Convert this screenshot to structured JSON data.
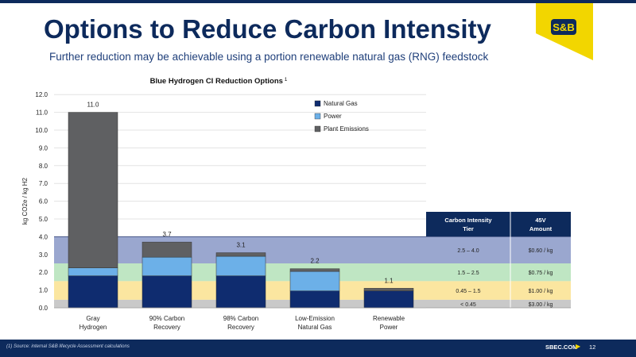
{
  "slide": {
    "title": "Options to Reduce Carbon Intensity",
    "subtitle": "Further reduction may be achievable using a portion renewable natural gas (RNG) feedstock",
    "logo_text": "S&B",
    "footnote": "(1) Source: internal S&B lifecycle Assessment calculations",
    "footer_url": "SBEC.COM",
    "page_number": "12"
  },
  "colors": {
    "brand_navy": "#0d2a5c",
    "logo_yellow": "#f2d600",
    "natural_gas": "#0f2c6f",
    "power": "#6cb0e8",
    "plant_emissions": "#5f6062",
    "tier_1": "#9aa7cf",
    "tier_2": "#bfe6c3",
    "tier_3": "#fbe6a0",
    "tier_4": "#c9c9c9"
  },
  "chart_data": {
    "type": "bar",
    "stacked": true,
    "title": "Blue Hydrogen CI Reduction Options",
    "title_superscript": "1",
    "ylabel": "kg CO2e / kg H2",
    "ylim": [
      0,
      12
    ],
    "yticks": [
      "0.0",
      "1.0",
      "2.0",
      "3.0",
      "4.0",
      "5.0",
      "6.0",
      "7.0",
      "8.0",
      "9.0",
      "10.0",
      "11.0",
      "12.0"
    ],
    "grid": true,
    "legend_position": "top-right",
    "categories": [
      [
        "Gray",
        "Hydrogen"
      ],
      [
        "90% Carbon",
        "Recovery"
      ],
      [
        "98% Carbon",
        "Recovery"
      ],
      [
        "Low-Emission",
        "Natural Gas"
      ],
      [
        "Renewable",
        "Power"
      ]
    ],
    "series": [
      {
        "name": "Natural Gas",
        "values": [
          1.8,
          1.8,
          1.8,
          0.95,
          0.95
        ]
      },
      {
        "name": "Power",
        "values": [
          0.45,
          1.05,
          1.1,
          1.1,
          0.0
        ]
      },
      {
        "name": "Plant Emissions",
        "values": [
          8.75,
          0.85,
          0.2,
          0.15,
          0.15
        ]
      }
    ],
    "totals": [
      "11.0",
      "3.7",
      "3.1",
      "2.2",
      "1.1"
    ],
    "tiers": {
      "headers": [
        [
          "Carbon Intensity",
          "Tier"
        ],
        [
          "45V",
          "Amount"
        ]
      ],
      "rows": [
        {
          "range": "2.5 – 4.0",
          "amount": "$0.60 / kg",
          "low": 2.5,
          "high": 4.0
        },
        {
          "range": "1.5 – 2.5",
          "amount": "$0.75 / kg",
          "low": 1.5,
          "high": 2.5
        },
        {
          "range": "0.45 – 1.5",
          "amount": "$1.00 / kg",
          "low": 0.45,
          "high": 1.5
        },
        {
          "range": "< 0.45",
          "amount": "$3.00 / kg",
          "low": 0.0,
          "high": 0.45
        }
      ]
    }
  }
}
